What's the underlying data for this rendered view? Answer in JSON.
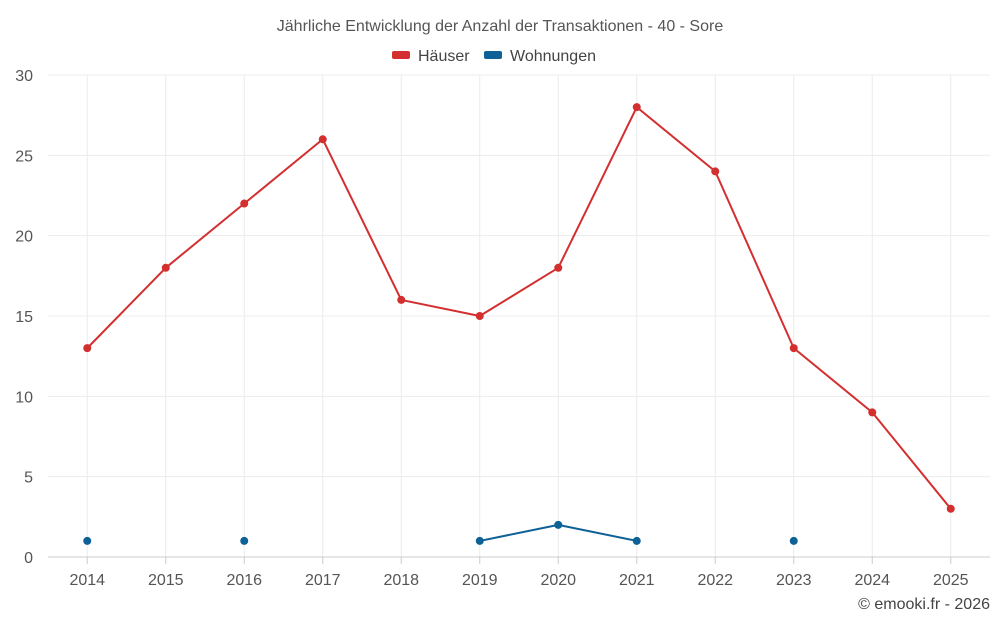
{
  "chart_data": {
    "type": "line",
    "title": "Jährliche Entwicklung der Anzahl der Transaktionen - 40 - Sore",
    "categories": [
      "2014",
      "2015",
      "2016",
      "2017",
      "2018",
      "2019",
      "2020",
      "2021",
      "2022",
      "2023",
      "2024",
      "2025"
    ],
    "series": [
      {
        "name": "Häuser",
        "color": "#d32f2f",
        "values": [
          13,
          18,
          22,
          26,
          16,
          15,
          18,
          28,
          24,
          13,
          9,
          3
        ]
      },
      {
        "name": "Wohnungen",
        "color": "#0d6196",
        "values": [
          1,
          null,
          1,
          null,
          null,
          1,
          2,
          1,
          null,
          1,
          null,
          null
        ]
      }
    ],
    "ylim": [
      0,
      30
    ],
    "yticks": [
      0,
      5,
      10,
      15,
      20,
      25,
      30
    ],
    "grid": true,
    "legend": "top-center",
    "xlabel": "",
    "ylabel": ""
  },
  "credit": "© emooki.fr - 2026"
}
